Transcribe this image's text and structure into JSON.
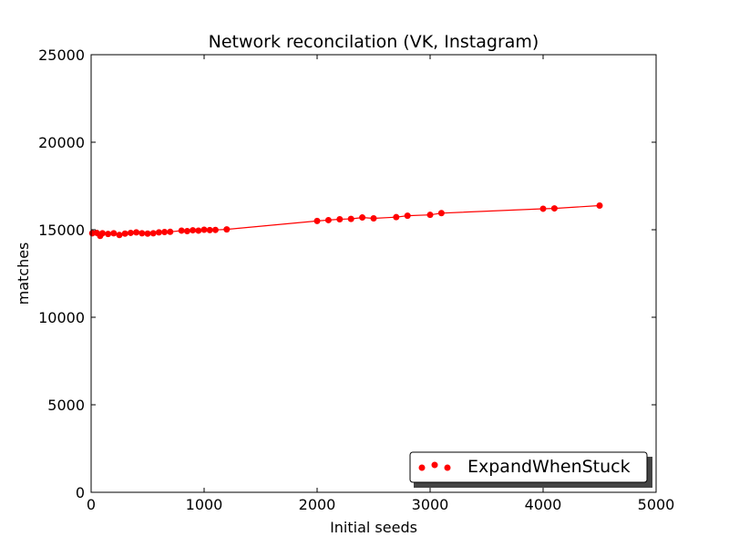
{
  "chart_data": {
    "type": "line",
    "title": "Network reconcilation (VK, Instagram)",
    "xlabel": "Initial seeds",
    "ylabel": "matches",
    "xlim": [
      0,
      5000
    ],
    "ylim": [
      0,
      25000
    ],
    "xticks": [
      0,
      1000,
      2000,
      3000,
      4000,
      5000
    ],
    "yticks": [
      0,
      5000,
      10000,
      15000,
      20000,
      25000
    ],
    "grid": false,
    "legend_position": "lower-right",
    "colors": {
      "series": "#ff0000",
      "axes": "#000000",
      "background": "#ffffff"
    },
    "series": [
      {
        "name": "ExpandWhenStuck",
        "marker": "circle",
        "x": [
          10,
          50,
          80,
          100,
          150,
          200,
          250,
          300,
          350,
          400,
          450,
          500,
          550,
          600,
          650,
          700,
          800,
          850,
          900,
          950,
          1000,
          1050,
          1100,
          1200,
          2000,
          2100,
          2200,
          2300,
          2400,
          2500,
          2700,
          2800,
          3000,
          3100,
          4000,
          4100,
          4500
        ],
        "y": [
          14800,
          14820,
          14650,
          14800,
          14760,
          14800,
          14700,
          14780,
          14820,
          14850,
          14800,
          14780,
          14800,
          14850,
          14870,
          14880,
          14950,
          14920,
          14970,
          14950,
          15000,
          14980,
          14990,
          15020,
          15500,
          15550,
          15600,
          15620,
          15700,
          15650,
          15720,
          15800,
          15850,
          15950,
          16200,
          16220,
          16380
        ]
      }
    ]
  }
}
